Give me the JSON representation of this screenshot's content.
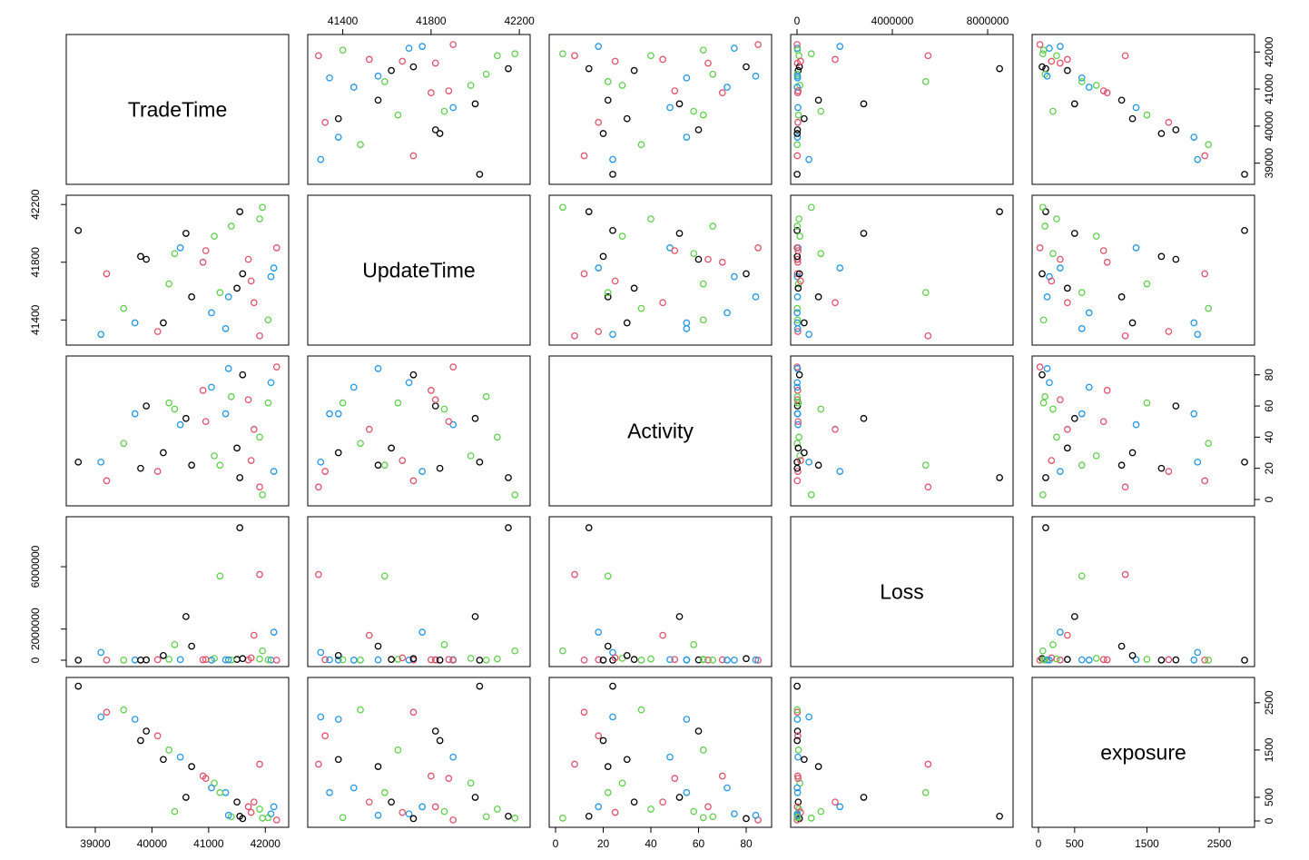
{
  "chart_data": {
    "type": "scatter",
    "kind": "scatterplot-matrix",
    "title": "",
    "variables": [
      "TradeTime",
      "UpdateTime",
      "Activity",
      "Loss",
      "exposure"
    ],
    "group_colors": [
      "#000000",
      "#DF536B",
      "#61D04F",
      "#2297E6"
    ],
    "ranges": {
      "TradeTime": [
        38600,
        42300
      ],
      "UpdateTime": [
        41270,
        42220
      ],
      "Activity": [
        0,
        88
      ],
      "Loss": [
        0,
        8800000
      ],
      "exposure": [
        0,
        2900
      ]
    },
    "ticks": {
      "TradeTime": [
        39000,
        40000,
        41000,
        42000
      ],
      "UpdateTime": [
        41400,
        41800,
        42200
      ],
      "Activity": [
        0,
        20,
        40,
        60,
        80
      ],
      "Loss": [
        0,
        2000000,
        6000000
      ],
      "exposure": [
        0,
        500,
        1500,
        2500
      ]
    },
    "axis_ticks": {
      "top": {
        "UpdateTime": [
          "41400",
          "41800",
          "42200"
        ],
        "Loss": [
          "0",
          "4000000",
          "8000000"
        ]
      },
      "bottom": {
        "TradeTime": [
          "39000",
          "40000",
          "41000",
          "42000"
        ],
        "Activity": [
          "0",
          "20",
          "40",
          "60",
          "80"
        ],
        "exposure": [
          "0",
          "500",
          "1500",
          "2500"
        ]
      },
      "left": {
        "UpdateTime": [
          "41400",
          "41800",
          "42200"
        ],
        "Loss": [
          "0",
          "2000000",
          "6000000"
        ]
      },
      "right": {
        "TradeTime": [
          "39000",
          "40000",
          "41000",
          "42000"
        ],
        "Activity": [
          "0",
          "20",
          "40",
          "60",
          "80"
        ],
        "exposure": [
          "0",
          "500",
          "1500",
          "2500"
        ]
      }
    },
    "points": [
      [
        38700,
        42020,
        24,
        4000,
        2850
      ],
      [
        39200,
        41720,
        12,
        12000,
        2300
      ],
      [
        39500,
        41480,
        36,
        8000,
        2350
      ],
      [
        39700,
        41380,
        55,
        15000,
        2150
      ],
      [
        39900,
        41820,
        60,
        20000,
        1900
      ],
      [
        40100,
        41320,
        18,
        35000,
        1800
      ],
      [
        40300,
        41650,
        62,
        60000,
        1500
      ],
      [
        40500,
        41900,
        48,
        40000,
        1350
      ],
      [
        40700,
        41560,
        22,
        900000,
        1150
      ],
      [
        40900,
        41800,
        70,
        30000,
        950
      ],
      [
        41100,
        41980,
        28,
        120000,
        800
      ],
      [
        41300,
        41340,
        55,
        25000,
        600
      ],
      [
        41500,
        41620,
        33,
        50000,
        400
      ],
      [
        41700,
        41820,
        64,
        15000,
        300
      ],
      [
        41900,
        42100,
        40,
        80000,
        250
      ],
      [
        42100,
        41700,
        75,
        10000,
        150
      ],
      [
        41550,
        42150,
        14,
        8500000,
        100
      ],
      [
        41900,
        41290,
        8,
        5500000,
        1200
      ],
      [
        41200,
        41590,
        22,
        5400000,
        600
      ],
      [
        42150,
        41760,
        18,
        1800000,
        300
      ],
      [
        40600,
        42000,
        52,
        2800000,
        500
      ],
      [
        41800,
        41520,
        45,
        1600000,
        400
      ],
      [
        40400,
        41860,
        58,
        1000000,
        200
      ],
      [
        39100,
        41300,
        24,
        500000,
        2200
      ],
      [
        41600,
        41720,
        80,
        100000,
        50
      ],
      [
        42200,
        41900,
        85,
        3000,
        20
      ],
      [
        41400,
        42050,
        66,
        12000,
        90
      ],
      [
        41050,
        41450,
        72,
        7000,
        700
      ],
      [
        40200,
        41380,
        30,
        300000,
        1300
      ],
      [
        41750,
        41670,
        25,
        150000,
        180
      ],
      [
        41950,
        42180,
        3,
        600000,
        60
      ],
      [
        41350,
        41560,
        84,
        20000,
        120
      ],
      [
        39800,
        41840,
        20,
        9000,
        1700
      ],
      [
        40950,
        41880,
        50,
        45000,
        900
      ],
      [
        42050,
        41400,
        62,
        25000,
        70
      ]
    ]
  }
}
